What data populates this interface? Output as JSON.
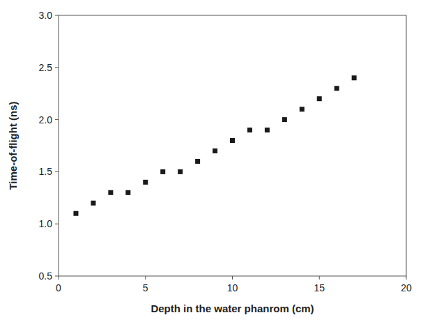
{
  "chart_data": {
    "type": "scatter",
    "x": [
      1,
      2,
      3,
      4,
      5,
      6,
      7,
      8,
      9,
      10,
      11,
      12,
      13,
      14,
      15,
      16,
      17
    ],
    "values": [
      1.1,
      1.2,
      1.3,
      1.3,
      1.4,
      1.5,
      1.5,
      1.6,
      1.7,
      1.8,
      1.9,
      1.9,
      2.0,
      2.1,
      2.2,
      2.3,
      2.4
    ],
    "xlabel": "Depth in the water phanrom (cm)",
    "ylabel": "Time-of-flight (ns)",
    "xlim": [
      0,
      20
    ],
    "ylim": [
      0.5,
      3.0
    ],
    "xticks": [
      0,
      5,
      10,
      15,
      20
    ],
    "yticks": [
      0.5,
      {
        "value": 1,
        "label": "1.0"
      },
      1.5,
      {
        "value": 2,
        "label": "2.0"
      },
      2.5,
      {
        "value": 3,
        "label": "3.0"
      }
    ],
    "marker": "square",
    "color": "#1a1a1a",
    "grid": false
  }
}
